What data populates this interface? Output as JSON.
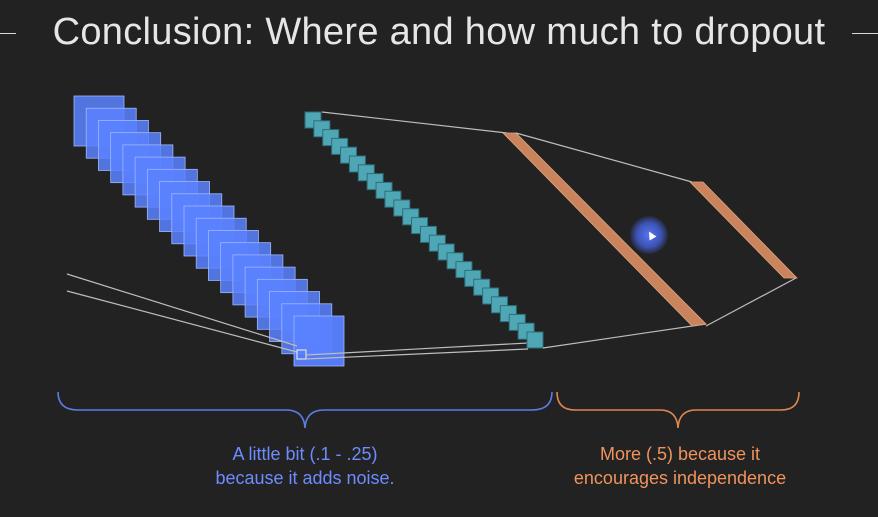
{
  "slide": {
    "title": "Conclusion: Where and how much to dropout",
    "captions": {
      "left": {
        "line1": "A little bit (.1 - .25)",
        "line2": "because it adds noise."
      },
      "right": {
        "line1": "More (.5) because it",
        "line2": "encourages independence"
      }
    },
    "colors": {
      "background": "#222222",
      "conv_blue": "#5a82ff",
      "pool_teal": "#4fa6b5",
      "dense_orange": "#c9845e",
      "brace_blue": "#5b7de8",
      "brace_orange": "#e08650",
      "caption_blue": "#6d8cff",
      "caption_orange": "#f0935c"
    },
    "icons": {
      "cursor": "mouse-pointer-icon"
    }
  }
}
